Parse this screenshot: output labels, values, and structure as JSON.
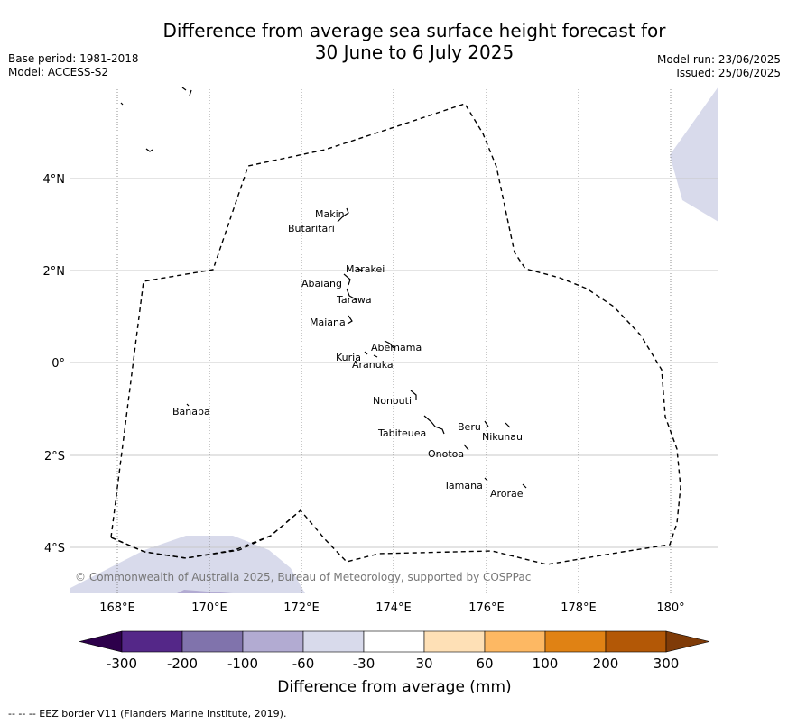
{
  "title_line1": "Difference from average sea surface height forecast for",
  "title_line2": "30 June to 6 July 2025",
  "meta_left": {
    "base_period": "Base period: 1981-2018",
    "model": "Model: ACCESS-S2"
  },
  "meta_right": {
    "model_run": "Model run: 23/06/2025",
    "issued": "Issued: 25/06/2025"
  },
  "map": {
    "lon_ticks": [
      "168°E",
      "170°E",
      "172°E",
      "174°E",
      "176°E",
      "178°E",
      "180°"
    ],
    "lat_ticks": [
      "4°N",
      "2°N",
      "0°",
      "2°S",
      "4°S"
    ],
    "copyright": "© Commonwealth of Australia 2025, Bureau of Meteorology, supported by COSPPac",
    "islands": [
      {
        "name": "Makin"
      },
      {
        "name": "Butaritari"
      },
      {
        "name": "Marakei"
      },
      {
        "name": "Abaiang"
      },
      {
        "name": "Tarawa"
      },
      {
        "name": "Maiana"
      },
      {
        "name": "Abemama"
      },
      {
        "name": "Kuria"
      },
      {
        "name": "Aranuka"
      },
      {
        "name": "Nonouti"
      },
      {
        "name": "Banaba"
      },
      {
        "name": "Tabiteuea"
      },
      {
        "name": "Beru"
      },
      {
        "name": "Nikunau"
      },
      {
        "name": "Onotoa"
      },
      {
        "name": "Tamana"
      },
      {
        "name": "Arorae"
      }
    ]
  },
  "colorbar": {
    "label": "Difference from average (mm)",
    "ticks": [
      "-300",
      "-200",
      "-100",
      "-60",
      "-30",
      "30",
      "60",
      "100",
      "200",
      "300"
    ],
    "colors": [
      "#2d004b",
      "#542788",
      "#8073ac",
      "#b2abd2",
      "#d8daeb",
      "#ffffff",
      "#fee0b6",
      "#fdb863",
      "#e08214",
      "#b35806",
      "#7f3b08"
    ]
  },
  "footer": "-- -- -- EEZ border V11 (Flanders Marine Institute, 2019)."
}
